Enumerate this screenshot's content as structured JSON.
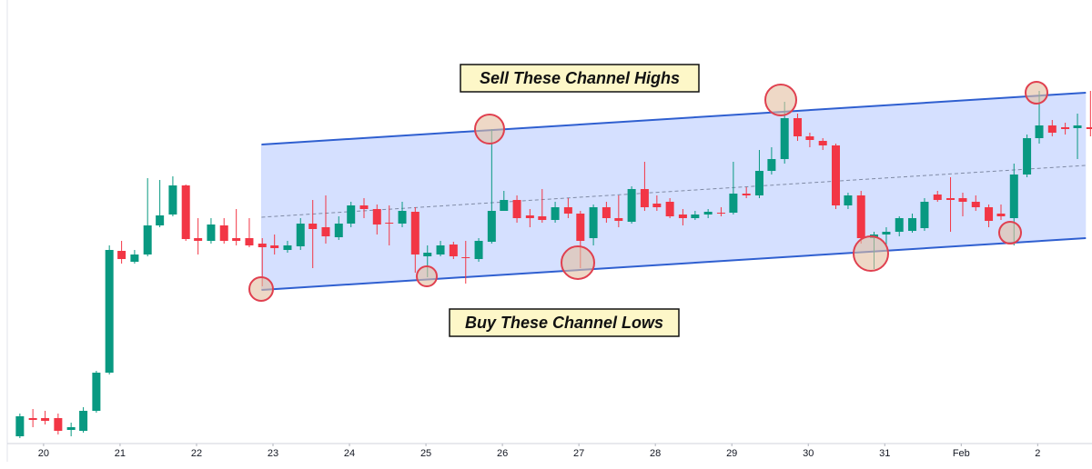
{
  "chart_data": {
    "type": "candlestick",
    "x": [
      19.69,
      19.86,
      20.02,
      20.19,
      20.36,
      20.52,
      20.69,
      20.86,
      21.02,
      21.19,
      21.36,
      21.52,
      21.69,
      21.86,
      22.02,
      22.19,
      22.36,
      22.52,
      22.69,
      22.86,
      23.02,
      23.19,
      23.36,
      23.52,
      23.69,
      23.86,
      24.02,
      24.19,
      24.36,
      24.52,
      24.69,
      24.86,
      25.02,
      25.19,
      25.36,
      25.52,
      25.69,
      25.86,
      26.02,
      26.19,
      26.36,
      26.52,
      26.69,
      26.86,
      27.02,
      27.19,
      27.36,
      27.52,
      27.69,
      27.86,
      28.02,
      28.19,
      28.36,
      28.52,
      28.69,
      28.86,
      29.02,
      29.19,
      29.36,
      29.52,
      29.69,
      29.86,
      30.02,
      30.19,
      30.36,
      30.52,
      30.69,
      30.86,
      31.02,
      31.19,
      31.36,
      31.52,
      31.69,
      31.86,
      32.02,
      32.19,
      32.36,
      32.52,
      32.69,
      32.86,
      33.02,
      33.19,
      33.36,
      33.52,
      33.69
    ],
    "open": [
      20,
      40,
      40,
      40,
      27,
      26,
      48,
      90,
      224,
      212,
      220,
      252,
      264,
      296,
      238,
      235,
      252,
      238,
      238,
      232,
      230,
      225,
      229,
      254,
      250,
      239,
      254,
      274,
      270,
      255,
      254,
      267,
      218,
      220,
      231,
      217,
      215,
      234,
      268,
      280,
      263,
      262,
      258,
      272,
      265,
      238,
      272,
      260,
      256,
      292,
      276,
      278,
      264,
      260,
      264,
      266,
      266,
      287,
      285,
      312,
      325,
      370,
      350,
      345,
      340,
      274,
      285,
      238,
      242,
      245,
      246,
      249,
      286,
      282,
      282,
      278,
      272,
      265,
      260,
      308,
      348,
      362,
      360,
      359,
      360
    ],
    "high": [
      45,
      50,
      48,
      45,
      35,
      52,
      92,
      230,
      235,
      225,
      304,
      302,
      306,
      297,
      260,
      260,
      260,
      270,
      260,
      238,
      242,
      235,
      260,
      280,
      285,
      262,
      278,
      282,
      275,
      274,
      278,
      272,
      230,
      235,
      234,
      235,
      238,
      358,
      290,
      285,
      270,
      292,
      278,
      282,
      268,
      275,
      278,
      285,
      295,
      322,
      285,
      282,
      270,
      268,
      270,
      272,
      322,
      294,
      335,
      338,
      388,
      375,
      354,
      348,
      342,
      288,
      290,
      245,
      250,
      262,
      265,
      282,
      290,
      305,
      288,
      285,
      275,
      275,
      320,
      352,
      400,
      368,
      365,
      375,
      400
    ],
    "low": [
      18,
      30,
      33,
      22,
      20,
      24,
      46,
      88,
      210,
      210,
      218,
      250,
      262,
      235,
      220,
      232,
      232,
      230,
      228,
      185,
      220,
      222,
      225,
      205,
      232,
      236,
      250,
      260,
      242,
      230,
      250,
      200,
      195,
      218,
      215,
      188,
      212,
      232,
      268,
      255,
      250,
      255,
      255,
      260,
      205,
      230,
      255,
      250,
      254,
      268,
      268,
      260,
      252,
      258,
      260,
      262,
      264,
      282,
      282,
      308,
      320,
      345,
      338,
      335,
      270,
      270,
      232,
      204,
      230,
      240,
      244,
      246,
      278,
      245,
      262,
      268,
      250,
      258,
      230,
      305,
      342,
      350,
      352,
      325,
      350
    ],
    "close": [
      42,
      38,
      37,
      26,
      30,
      48,
      90,
      225,
      215,
      220,
      252,
      263,
      296,
      237,
      235,
      253,
      235,
      235,
      230,
      228,
      227,
      230,
      254,
      248,
      240,
      254,
      274,
      270,
      253,
      254,
      268,
      220,
      222,
      230,
      218,
      216,
      235,
      268,
      280,
      260,
      260,
      258,
      272,
      265,
      235,
      272,
      260,
      257,
      292,
      272,
      272,
      262,
      260,
      264,
      267,
      265,
      287,
      285,
      312,
      325,
      370,
      350,
      346,
      340,
      274,
      285,
      238,
      242,
      245,
      260,
      260,
      278,
      280,
      280,
      278,
      272,
      257,
      262,
      308,
      348,
      362,
      354,
      358,
      362,
      358
    ],
    "up_color": "#089981",
    "down_color": "#f23645",
    "xlim": [
      19.43,
      33.71
    ],
    "ylim": [
      12,
      500
    ],
    "xticks": [
      20,
      21,
      22,
      23,
      24,
      25,
      26,
      27,
      28,
      29,
      30,
      31,
      {
        "value": 32,
        "label": "Feb"
      },
      {
        "value": 33,
        "label": "2"
      }
    ],
    "channel": {
      "x": [
        22.85,
        33.63
      ],
      "upper": [
        341,
        398
      ],
      "middle": [
        261,
        318
      ],
      "lower": [
        181,
        238
      ],
      "line_color": "#2f5fd0",
      "fill_color": "#d3deff"
    },
    "annotations": [
      "Sell These Channel Highs",
      "Buy These Channel Lows"
    ]
  }
}
